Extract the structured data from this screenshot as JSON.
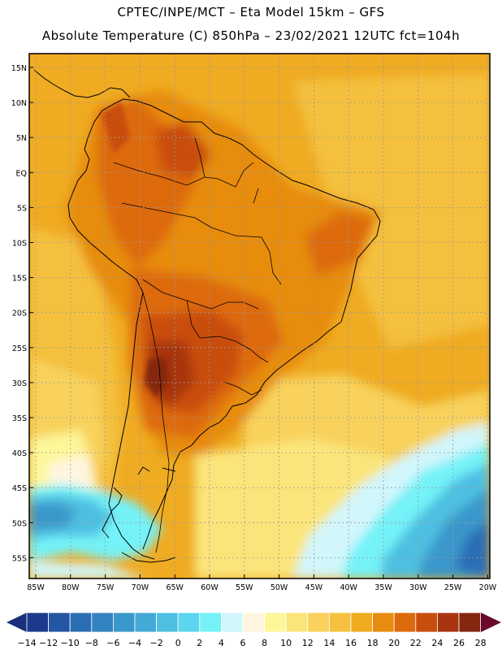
{
  "header": {
    "title_line1": "CPTEC/INPE/MCT –  Eta Model 15km – GFS",
    "title_line2": "Absolute Temperature (C) 850hPa – 23/02/2021 12UTC fct=104h"
  },
  "map": {
    "lat_labels": [
      "15N",
      "10N",
      "5N",
      "EQ",
      "5S",
      "10S",
      "15S",
      "20S",
      "25S",
      "30S",
      "35S",
      "40S",
      "45S",
      "50S",
      "55S"
    ],
    "lon_labels": [
      "85W",
      "80W",
      "75W",
      "70W",
      "65W",
      "60W",
      "55W",
      "50W",
      "45W",
      "40W",
      "35W",
      "30W",
      "25W",
      "20W"
    ]
  },
  "colorbar": {
    "labels": [
      "-14",
      "-12",
      "-10",
      "-8",
      "-6",
      "-4",
      "-2",
      "0",
      "2",
      "4",
      "6",
      "8",
      "10",
      "12",
      "14",
      "16",
      "18",
      "20",
      "22",
      "24",
      "26",
      "28"
    ],
    "colors": [
      "#1b3a8c",
      "#2356a3",
      "#2b6eb5",
      "#3383c0",
      "#3a97cb",
      "#43aad6",
      "#4ec0e2",
      "#5cd6ee",
      "#74f2f8",
      "#d1f6fb",
      "#fff5e0",
      "#fdf79a",
      "#fbe57a",
      "#f8d25c",
      "#f4c03e",
      "#efab22",
      "#e78c10",
      "#dd6a0c",
      "#c94e0e",
      "#a8350f",
      "#852610"
    ],
    "low_color": "#1a2f7a",
    "high_color": "#6b0a2a"
  }
}
